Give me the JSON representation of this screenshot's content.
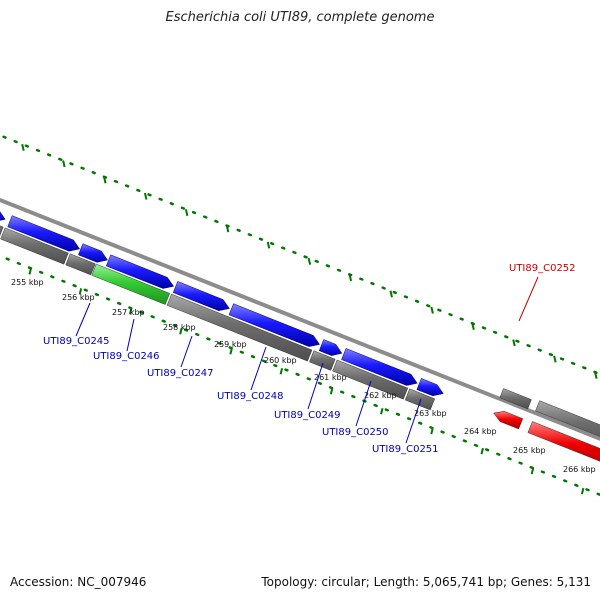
{
  "title": "Escherichia coli UTI89, complete genome",
  "footer": {
    "accession": "Accession: NC_007946",
    "summary": "Topology: circular; Length: 5,065,741 bp; Genes: 5,131"
  },
  "colors": {
    "forward_cds": "#0000ee",
    "reverse_gene": "#777777",
    "highlight": "#33cc33",
    "selected": "#ee0000",
    "ticks": "#007700",
    "label_blue": "#0000bb",
    "label_red": "#cc0000"
  },
  "ticks": [
    "255 kbp",
    "256 kbp",
    "257 kbp",
    "258 kbp",
    "259 kbp",
    "260 kbp",
    "261 kbp",
    "262 kbp",
    "263 kbp",
    "264 kbp",
    "265 kbp",
    "266 kbp"
  ],
  "gene_labels": [
    "UTI89_C0245",
    "UTI89_C0246",
    "UTI89_C0247",
    "UTI89_C0248",
    "UTI89_C0249",
    "UTI89_C0250",
    "UTI89_C0251",
    "UTI89_C0252"
  ]
}
